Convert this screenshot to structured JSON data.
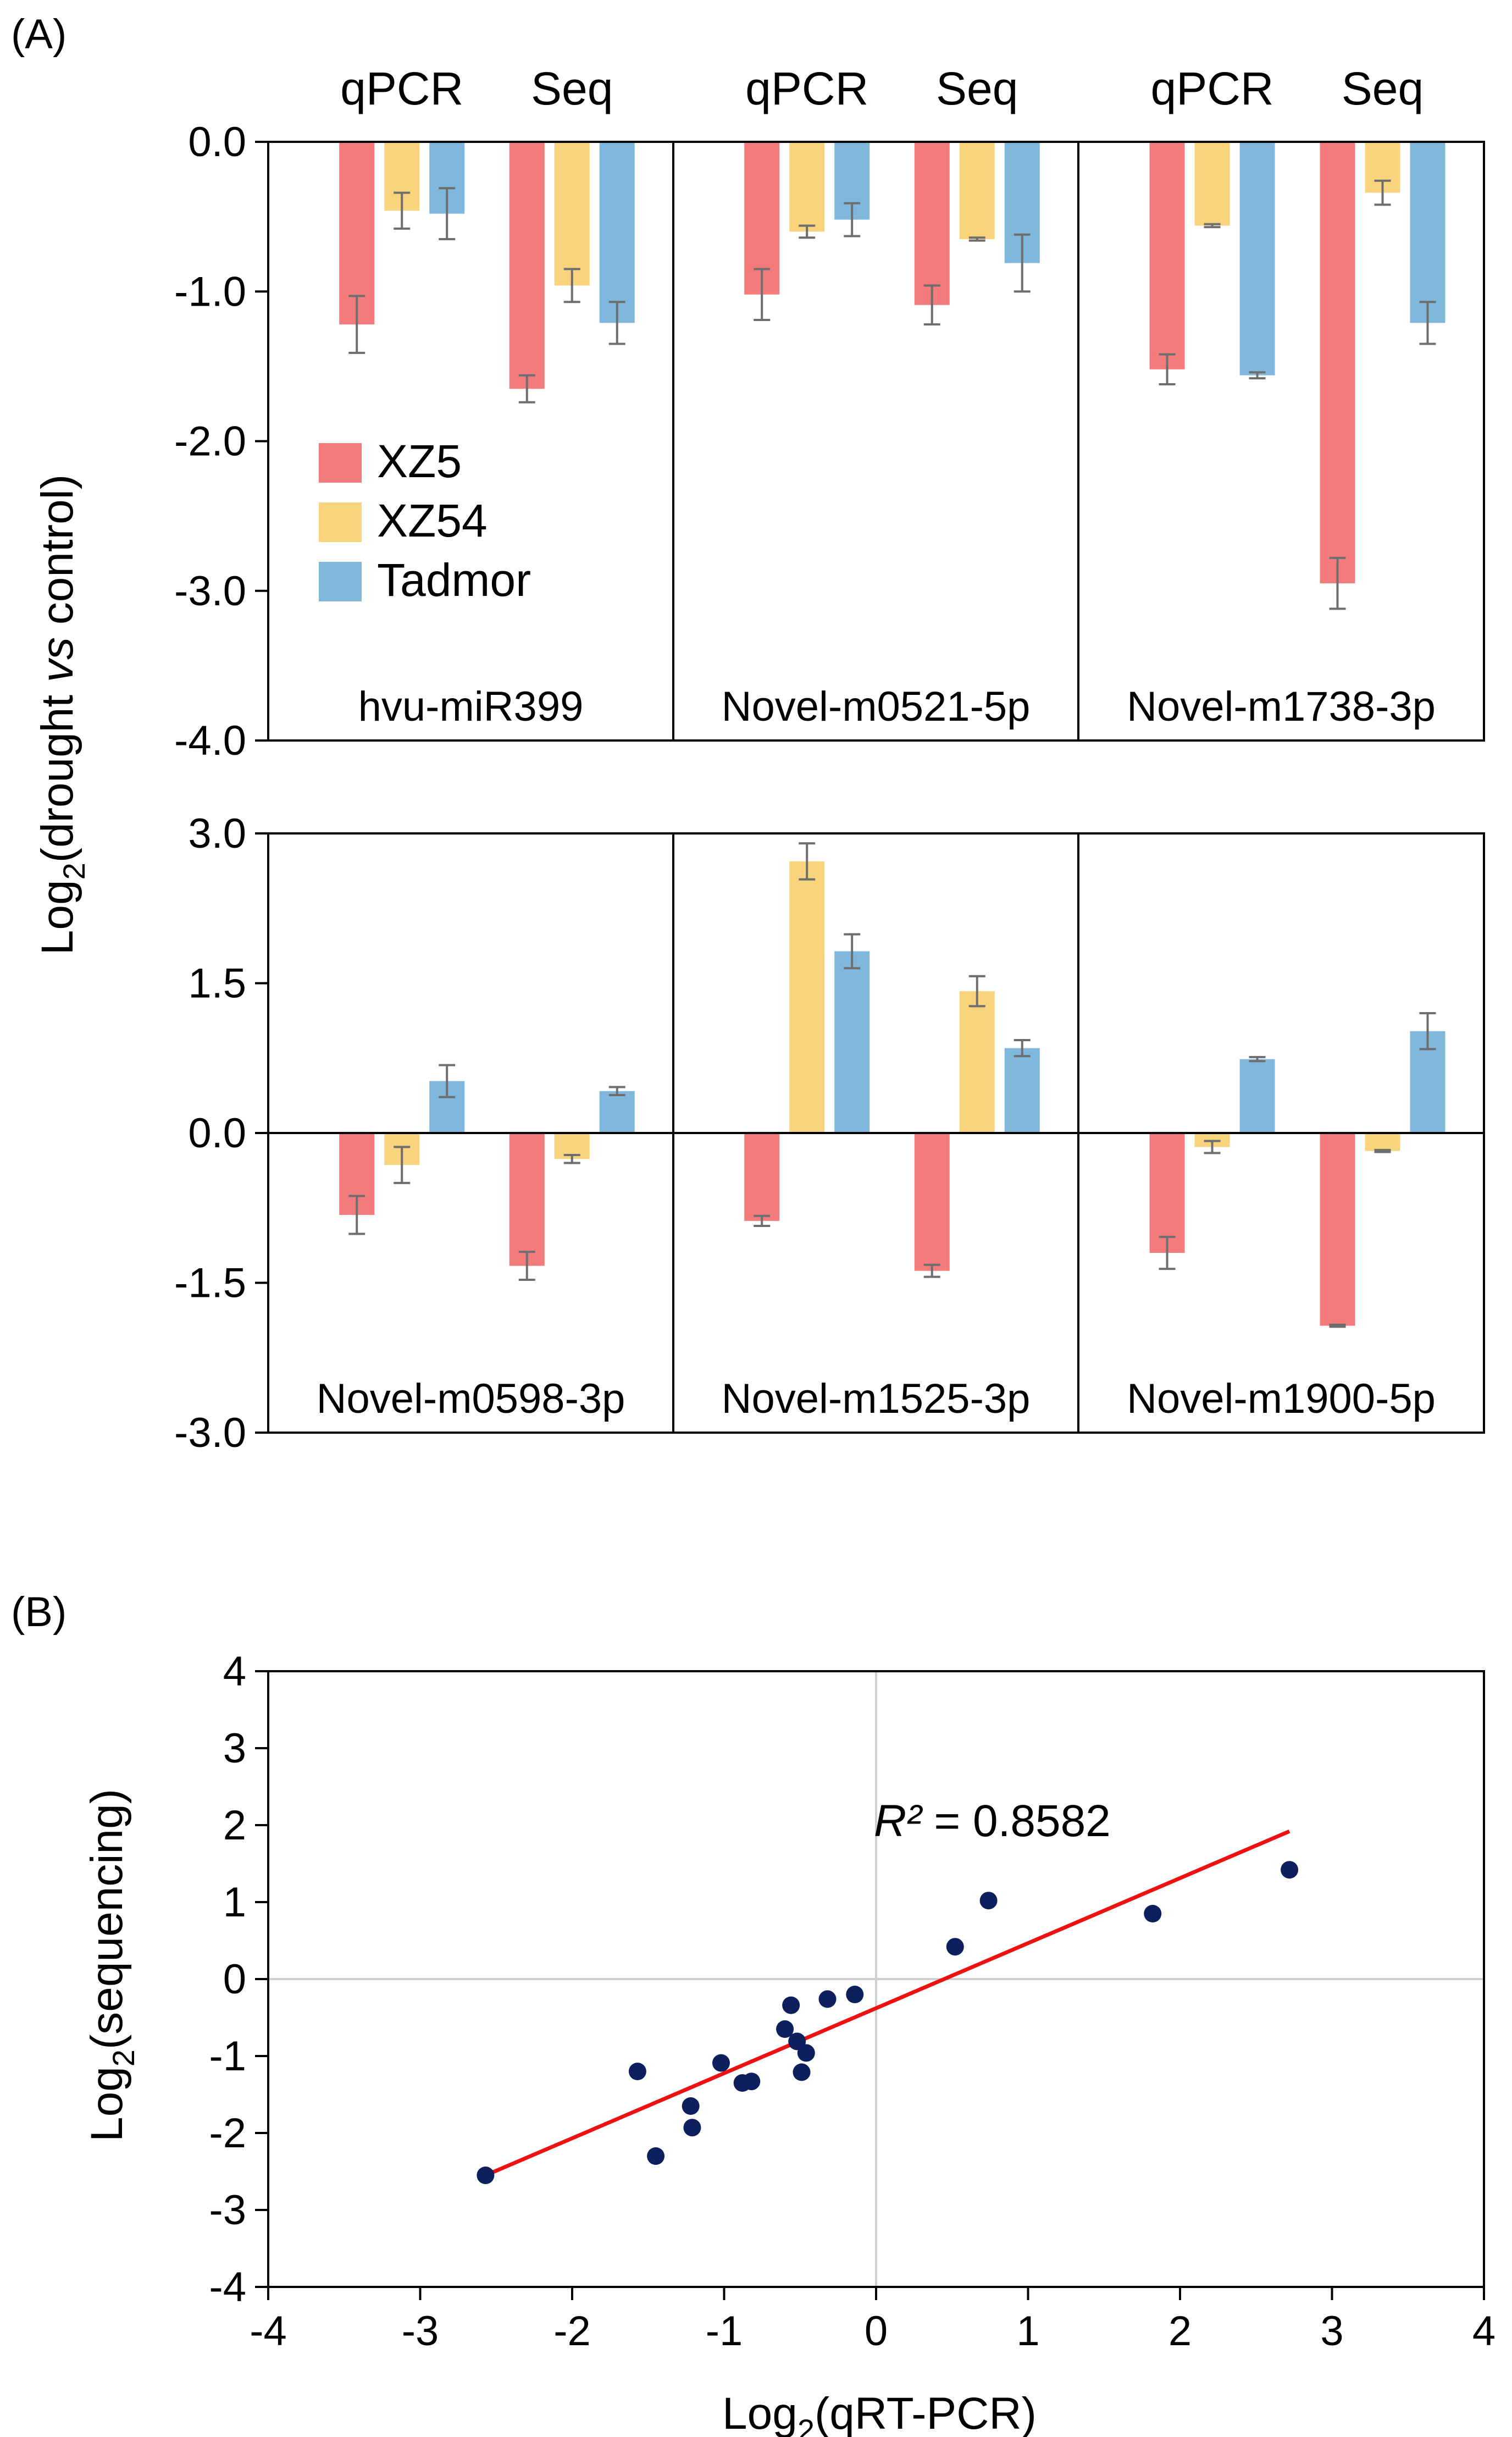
{
  "panel_a": {
    "label": "(A)",
    "ylabel_prefix": "Log",
    "ylabel_sub": "2",
    "ylabel_open": "(drought ",
    "ylabel_italic": "vs",
    "ylabel_close": " control)"
  },
  "panel_b": {
    "label": "(B)",
    "xlabel_prefix": "Log",
    "xlabel_sub": "2",
    "xlabel_suffix": "(qRT-PCR)",
    "ylabel_prefix": "Log",
    "ylabel_sub": "2",
    "ylabel_suffix": "(sequencing)",
    "r2_label": "R²",
    "r2_value": " = 0.8582"
  },
  "colors": {
    "XZ5": "#f47b7b",
    "XZ54": "#f9d47c",
    "Tadmor": "#7fb8dc",
    "points": "#0d1f5c",
    "fit_line": "#ee1111",
    "error_bar": "#6e6e6e"
  },
  "chart_data": [
    {
      "type": "bar",
      "groups": [
        "qPCR",
        "Seq"
      ],
      "legend": [
        "XZ5",
        "XZ54",
        "Tadmor"
      ],
      "legend_position": "inside first row, left",
      "rows": [
        {
          "ylim": [
            -4.0,
            0.0
          ],
          "yticks": [
            "0.0",
            "-1.0",
            "-2.0",
            "-3.0",
            "-4.0"
          ],
          "ytick_values": [
            0,
            -1,
            -2,
            -3,
            -4
          ],
          "panels": [
            {
              "name": "hvu-miR399",
              "qPCR": {
                "values": [
                  -1.22,
                  -0.46,
                  -0.48
                ],
                "errors": [
                  0.19,
                  0.12,
                  0.17
                ]
              },
              "Seq": {
                "values": [
                  -1.65,
                  -0.96,
                  -1.21
                ],
                "errors": [
                  0.09,
                  0.11,
                  0.14
                ]
              }
            },
            {
              "name": "Novel-m0521-5p",
              "qPCR": {
                "values": [
                  -1.02,
                  -0.6,
                  -0.52
                ],
                "errors": [
                  0.17,
                  0.04,
                  0.11
                ]
              },
              "Seq": {
                "values": [
                  -1.09,
                  -0.65,
                  -0.81
                ],
                "errors": [
                  0.13,
                  0.01,
                  0.19
                ]
              }
            },
            {
              "name": "Novel-m1738-3p",
              "qPCR": {
                "values": [
                  -1.52,
                  -0.56,
                  -1.56
                ],
                "errors": [
                  0.1,
                  0.01,
                  0.02
                ]
              },
              "Seq": {
                "values": [
                  -2.95,
                  -0.34,
                  -1.21
                ],
                "errors": [
                  0.17,
                  0.08,
                  0.14
                ]
              }
            }
          ]
        },
        {
          "ylim": [
            -3.0,
            3.0
          ],
          "yticks": [
            "3.0",
            "1.5",
            "0.0",
            "-1.5",
            "-3.0"
          ],
          "ytick_values": [
            3,
            1.5,
            0,
            -1.5,
            -3
          ],
          "panels": [
            {
              "name": "Novel-m0598-3p",
              "qPCR": {
                "values": [
                  -0.82,
                  -0.32,
                  0.52
                ],
                "errors": [
                  0.19,
                  0.18,
                  0.16
                ]
              },
              "Seq": {
                "values": [
                  -1.33,
                  -0.26,
                  0.42
                ],
                "errors": [
                  0.14,
                  0.04,
                  0.04
                ]
              }
            },
            {
              "name": "Novel-m1525-3p",
              "qPCR": {
                "values": [
                  -0.88,
                  2.72,
                  1.82
                ],
                "errors": [
                  0.05,
                  0.18,
                  0.17
                ]
              },
              "Seq": {
                "values": [
                  -1.38,
                  1.42,
                  0.85
                ],
                "errors": [
                  0.06,
                  0.15,
                  0.08
                ]
              }
            },
            {
              "name": "Novel-m1900-5p",
              "qPCR": {
                "values": [
                  -1.2,
                  -0.14,
                  0.74
                ],
                "errors": [
                  0.16,
                  0.06,
                  0.02
                ]
              },
              "Seq": {
                "values": [
                  -1.93,
                  -0.18,
                  1.02
                ],
                "errors": [
                  0.01,
                  0.01,
                  0.18
                ]
              }
            }
          ]
        }
      ]
    },
    {
      "type": "scatter",
      "xlim": [
        -4,
        4
      ],
      "ylim": [
        -4,
        4
      ],
      "xticks": [
        -4,
        -3,
        -2,
        -1,
        0,
        1,
        2,
        3,
        4
      ],
      "yticks": [
        4,
        3,
        2,
        1,
        0,
        -1,
        -2,
        -3,
        -4
      ],
      "grid": "zero lines only",
      "points": [
        [
          -2.57,
          -2.55
        ],
        [
          -1.57,
          -1.2
        ],
        [
          -1.45,
          -2.3
        ],
        [
          -1.22,
          -1.65
        ],
        [
          -1.21,
          -1.93
        ],
        [
          -1.02,
          -1.09
        ],
        [
          -0.88,
          -1.35
        ],
        [
          -0.82,
          -1.33
        ],
        [
          -0.6,
          -0.65
        ],
        [
          -0.56,
          -0.34
        ],
        [
          -0.52,
          -0.81
        ],
        [
          -0.49,
          -1.21
        ],
        [
          -0.46,
          -0.96
        ],
        [
          -0.32,
          -0.26
        ],
        [
          -0.14,
          -0.2
        ],
        [
          0.52,
          0.42
        ],
        [
          0.74,
          1.02
        ],
        [
          1.82,
          0.85
        ],
        [
          2.72,
          1.42
        ]
      ],
      "trendline": {
        "x": [
          -2.57,
          2.72
        ],
        "y": [
          -2.55,
          1.92
        ]
      },
      "r_squared": 0.8582
    }
  ]
}
